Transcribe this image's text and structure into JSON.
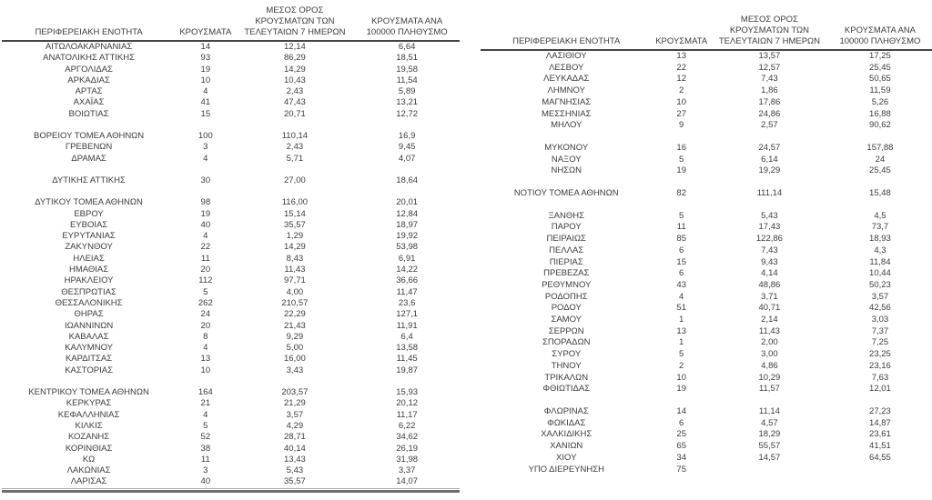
{
  "colors": {
    "text": "#3c3c3c",
    "header_underline": "#454545",
    "left_table_bottom_border": "#6d6d6d",
    "background": "#ffffff"
  },
  "left_table": {
    "headers": [
      "ΠΕΡΙΦΕΡΕΙΑΚΗ ΕΝΟΤΗΤΑ",
      "ΚΡΟΥΣΜΑΤΑ",
      "ΜΕΣΟΣ ΟΡΟΣ ΚΡΟΥΣΜΑΤΩΝ ΤΩΝ ΤΕΛΕΥΤΑΙΩΝ 7 ΗΜΕΡΩΝ",
      "ΚΡΟΥΣΜΑΤΑ ΑΝΑ 100000 ΠΛΗΘΥΣΜΟ"
    ],
    "groups": [
      {
        "rows": [
          [
            "ΑΙΤΩΛΟΑΚΑΡΝΑΝΙΑΣ",
            "14",
            "12,14",
            "6,64"
          ],
          [
            "ΑΝΑΤΟΛΙΚΗΣ ΑΤΤΙΚΗΣ",
            "93",
            "86,29",
            "18,51"
          ],
          [
            "ΑΡΓΟΛΙΔΑΣ",
            "19",
            "14,29",
            "19,58"
          ],
          [
            "ΑΡΚΑΔΙΑΣ",
            "10",
            "10,43",
            "11,54"
          ],
          [
            "ΑΡΤΑΣ",
            "4",
            "2,43",
            "5,89"
          ],
          [
            "ΑΧΑΪΑΣ",
            "41",
            "47,43",
            "13,21"
          ],
          [
            "ΒΟΙΩΤΙΑΣ",
            "15",
            "20,71",
            "12,72"
          ]
        ]
      },
      {
        "rows": [
          [
            "ΒΟΡΕΙΟΥ ΤΟΜΕΑ ΑΘΗΝΩΝ",
            "100",
            "110,14",
            "16,9"
          ],
          [
            "ΓΡΕΒΕΝΩΝ",
            "3",
            "2,43",
            "9,45"
          ],
          [
            "ΔΡΑΜΑΣ",
            "4",
            "5,71",
            "4,07"
          ]
        ]
      },
      {
        "rows": [
          [
            "ΔΥΤΙΚΗΣ ΑΤΤΙΚΗΣ",
            "30",
            "27,00",
            "18,64"
          ]
        ]
      },
      {
        "rows": [
          [
            "ΔΥΤΙΚΟΥ ΤΟΜΕΑ ΑΘΗΝΩΝ",
            "98",
            "116,00",
            "20,01"
          ],
          [
            "ΕΒΡΟΥ",
            "19",
            "15,14",
            "12,84"
          ],
          [
            "ΕΥΒΟΙΑΣ",
            "40",
            "35,57",
            "18,97"
          ],
          [
            "ΕΥΡΥΤΑΝΙΑΣ",
            "4",
            "1,29",
            "19,92"
          ],
          [
            "ΖΑΚΥΝΘΟΥ",
            "22",
            "14,29",
            "53,98"
          ],
          [
            "ΗΛΕΙΑΣ",
            "11",
            "8,43",
            "6,91"
          ],
          [
            "ΗΜΑΘΙΑΣ",
            "20",
            "11,43",
            "14,22"
          ],
          [
            "ΗΡΑΚΛΕΙΟΥ",
            "112",
            "97,71",
            "36,66"
          ],
          [
            "ΘΕΣΠΡΩΤΙΑΣ",
            "5",
            "4,00",
            "11,47"
          ],
          [
            "ΘΕΣΣΑΛΟΝΙΚΗΣ",
            "262",
            "210,57",
            "23,6"
          ],
          [
            "ΘΗΡΑΣ",
            "24",
            "22,29",
            "127,1"
          ],
          [
            "ΙΩΑΝΝΙΝΩΝ",
            "20",
            "21,43",
            "11,91"
          ],
          [
            "ΚΑΒΑΛΑΣ",
            "8",
            "9,29",
            "6,4"
          ],
          [
            "ΚΑΛΥΜΝΟΥ",
            "4",
            "5,00",
            "13,58"
          ],
          [
            "ΚΑΡΔΙΤΣΑΣ",
            "13",
            "16,00",
            "11,45"
          ],
          [
            "ΚΑΣΤΟΡΙΑΣ",
            "10",
            "3,43",
            "19,87"
          ]
        ]
      },
      {
        "rows": [
          [
            "ΚΕΝΤΡΙΚΟΥ ΤΟΜΕΑ ΑΘΗΝΩΝ",
            "164",
            "203,57",
            "15,93"
          ],
          [
            "ΚΕΡΚΥΡΑΣ",
            "21",
            "21,29",
            "20,12"
          ],
          [
            "ΚΕΦΑΛΛΗΝΙΑΣ",
            "4",
            "3,57",
            "11,17"
          ],
          [
            "ΚΙΛΚΙΣ",
            "5",
            "4,29",
            "6,22"
          ],
          [
            "ΚΟΖΑΝΗΣ",
            "52",
            "28,71",
            "34,62"
          ],
          [
            "ΚΟΡΙΝΘΙΑΣ",
            "38",
            "40,14",
            "26,19"
          ],
          [
            "ΚΩ",
            "11",
            "13,43",
            "31,98"
          ],
          [
            "ΛΑΚΩΝΙΑΣ",
            "3",
            "5,43",
            "3,37"
          ],
          [
            "ΛΑΡΙΣΑΣ",
            "40",
            "35,57",
            "14,07"
          ]
        ]
      }
    ]
  },
  "right_table": {
    "headers": [
      "ΠΕΡΙΦΕΡΕΙΑΚΗ ΕΝΟΤΗΤΑ",
      "ΚΡΟΥΣΜΑΤΑ",
      "ΜΕΣΟΣ ΟΡΟΣ ΚΡΟΥΣΜΑΤΩΝ ΤΩΝ ΤΕΛΕΥΤΑΙΩΝ 7 ΗΜΕΡΩΝ",
      "ΚΡΟΥΣΜΑΤΑ ΑΝΑ 100000 ΠΛΗΘΥΣΜΟ"
    ],
    "groups": [
      {
        "rows": [
          [
            "ΛΑΣΙΘΙΟΥ",
            "13",
            "13,57",
            "17,25"
          ],
          [
            "ΛΕΣΒΟΥ",
            "22",
            "12,57",
            "25,45"
          ],
          [
            "ΛΕΥΚΑΔΑΣ",
            "12",
            "7,43",
            "50,65"
          ],
          [
            "ΛΗΜΝΟΥ",
            "2",
            "1,86",
            "11,59"
          ],
          [
            "ΜΑΓΝΗΣΙΑΣ",
            "10",
            "17,86",
            "5,26"
          ],
          [
            "ΜΕΣΣΗΝΙΑΣ",
            "27",
            "24,86",
            "16,88"
          ],
          [
            "ΜΗΛΟΥ",
            "9",
            "2,57",
            "90,62"
          ]
        ]
      },
      {
        "rows": [
          [
            "ΜΥΚΟΝΟΥ",
            "16",
            "24,57",
            "157,88"
          ],
          [
            "ΝΑΞΟΥ",
            "5",
            "6,14",
            "24"
          ],
          [
            "ΝΗΣΩΝ",
            "19",
            "19,29",
            "25,45"
          ]
        ]
      },
      {
        "rows": [
          [
            "ΝΟΤΙΟΥ ΤΟΜΕΑ ΑΘΗΝΩΝ",
            "82",
            "111,14",
            "15,48"
          ]
        ]
      },
      {
        "rows": [
          [
            "ΞΑΝΘΗΣ",
            "5",
            "5,43",
            "4,5"
          ],
          [
            "ΠΑΡΟΥ",
            "11",
            "17,43",
            "73,7"
          ],
          [
            "ΠΕΙΡΑΙΩΣ",
            "85",
            "122,86",
            "18,93"
          ],
          [
            "ΠΕΛΛΑΣ",
            "6",
            "7,43",
            "4,3"
          ],
          [
            "ΠΙΕΡΙΑΣ",
            "15",
            "9,43",
            "11,84"
          ],
          [
            "ΠΡΕΒΕΖΑΣ",
            "6",
            "4,14",
            "10,44"
          ],
          [
            "ΡΕΘΥΜΝΟΥ",
            "43",
            "48,86",
            "50,23"
          ],
          [
            "ΡΟΔΟΠΗΣ",
            "4",
            "3,71",
            "3,57"
          ],
          [
            "ΡΟΔΟΥ",
            "51",
            "40,71",
            "42,56"
          ],
          [
            "ΣΑΜΟΥ",
            "1",
            "2,14",
            "3,03"
          ],
          [
            "ΣΕΡΡΩΝ",
            "13",
            "11,43",
            "7,37"
          ],
          [
            "ΣΠΟΡΑΔΩΝ",
            "1",
            "2,00",
            "7,25"
          ],
          [
            "ΣΥΡΟΥ",
            "5",
            "3,00",
            "23,25"
          ],
          [
            "ΤΗΝΟΥ",
            "2",
            "4,86",
            "23,16"
          ],
          [
            "ΤΡΙΚΑΛΩΝ",
            "10",
            "10,29",
            "7,63"
          ],
          [
            "ΦΘΙΩΤΙΔΑΣ",
            "19",
            "11,57",
            "12,01"
          ]
        ]
      },
      {
        "rows": [
          [
            "ΦΛΩΡΙΝΑΣ",
            "14",
            "11,14",
            "27,23"
          ],
          [
            "ΦΩΚΙΔΑΣ",
            "6",
            "4,57",
            "14,87"
          ],
          [
            "ΧΑΛΚΙΔΙΚΗΣ",
            "25",
            "18,29",
            "23,61"
          ],
          [
            "ΧΑΝΙΩΝ",
            "65",
            "55,57",
            "41,51"
          ],
          [
            "ΧΙΟΥ",
            "34",
            "14,57",
            "64,55"
          ],
          [
            "ΥΠΟ ΔΙΕΡΕΥΝΗΣΗ",
            "75",
            "",
            ""
          ]
        ]
      }
    ]
  }
}
